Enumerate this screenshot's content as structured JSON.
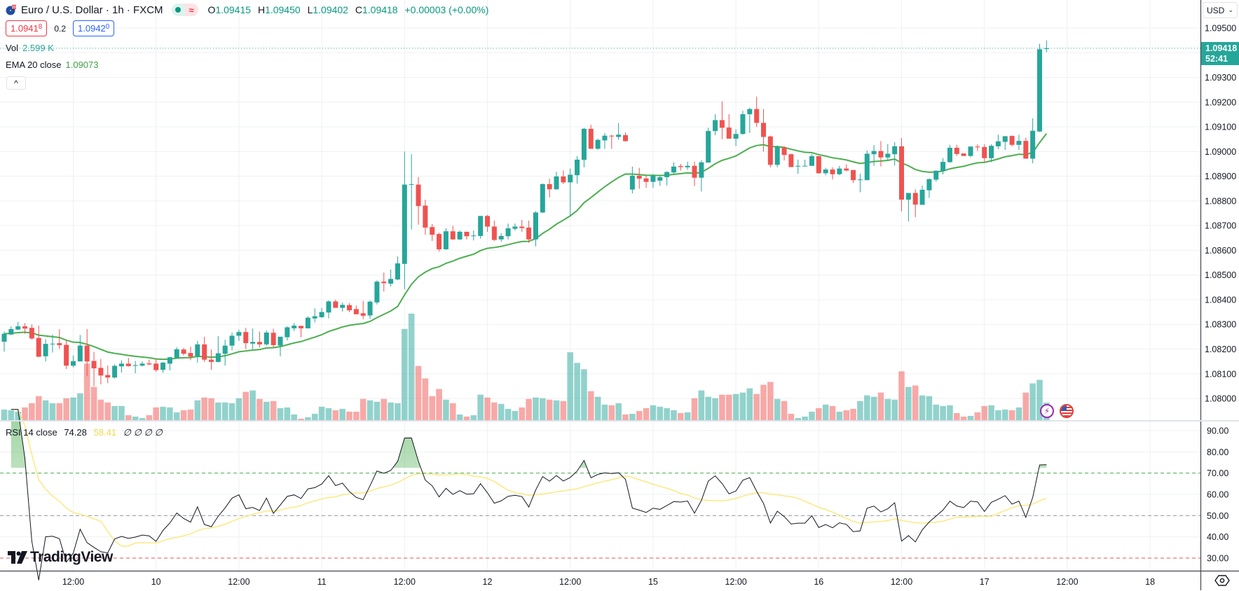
{
  "header": {
    "flag_icon": "eu-us-flag-icon",
    "symbol_title": "Euro / U.S. Dollar · 1h · FXCM",
    "market_status_icons": [
      "market-open-dot-icon",
      "approx-icon"
    ],
    "approx_glyph": "≈",
    "ohlc": {
      "o_label": "O",
      "o": "1.09415",
      "h_label": "H",
      "h": "1.09450",
      "l_label": "L",
      "l": "1.09402",
      "c_label": "C",
      "c": "1.09418",
      "change": "+0.00003 (+0.00%)"
    },
    "bid": {
      "main": "1.0941",
      "pip": "8"
    },
    "spread": "0.2",
    "ask": {
      "main": "1.0942",
      "pip": "0"
    }
  },
  "legends": {
    "vol": {
      "label": "Vol",
      "value": "2.599 K"
    },
    "ema": {
      "label": "EMA 20 close",
      "value": "1.09073"
    },
    "rsi": {
      "label": "RSI 14 close",
      "value": "74.28",
      "ma_value": "58.41",
      "extras": "∅ ∅ ∅ ∅"
    },
    "collapse_glyph": "^"
  },
  "price_axis": {
    "currency": "USD",
    "ticks": [
      "1.09500",
      "1.09300",
      "1.09200",
      "1.09100",
      "1.09000",
      "1.08900",
      "1.08800",
      "1.08700",
      "1.08600",
      "1.08500",
      "1.08400",
      "1.08300",
      "1.08200",
      "1.08100",
      "1.08000"
    ],
    "last_price": "1.09418",
    "countdown": "52:41"
  },
  "rsi_axis": {
    "ticks": [
      "90.00",
      "80.00",
      "70.00",
      "60.00",
      "50.00",
      "40.00",
      "30.00"
    ]
  },
  "time_axis": {
    "ticks": [
      {
        "label": "12:00",
        "bar_index": 10
      },
      {
        "label": "10",
        "bar_index": 22
      },
      {
        "label": "12:00",
        "bar_index": 34
      },
      {
        "label": "11",
        "bar_index": 46
      },
      {
        "label": "12:00",
        "bar_index": 58
      },
      {
        "label": "12",
        "bar_index": 70
      },
      {
        "label": "12:00",
        "bar_index": 82
      },
      {
        "label": "15",
        "bar_index": 94
      },
      {
        "label": "12:00",
        "bar_index": 106
      },
      {
        "label": "16",
        "bar_index": 118
      },
      {
        "label": "12:00",
        "bar_index": 130
      },
      {
        "label": "17",
        "bar_index": 142
      },
      {
        "label": "12:00",
        "bar_index": 154
      },
      {
        "label": "18",
        "bar_index": 166
      }
    ]
  },
  "branding": {
    "name": "TradingView"
  },
  "event_icons": [
    "lightning-icon",
    "us-flag-icon"
  ],
  "settings_icon": "gear-icon",
  "colors": {
    "up": "#26a69a",
    "down": "#ef5350",
    "vol_up": "rgba(38,166,154,0.5)",
    "vol_down": "rgba(239,83,80,0.5)",
    "ema": "#4caf50",
    "rsi": "#131722",
    "rsi_ma": "#fbe87a",
    "overbought_band": "#4caf50",
    "mid_band": "#9598a1",
    "oversold_band": "#ef5350",
    "grid": "#eef0f3"
  },
  "chart_data": {
    "type": "candlestick",
    "interval": "1h",
    "ylim": [
      1.0791,
      1.0961
    ],
    "rsi_ylim": [
      25,
      95
    ],
    "rsi_levels": [
      70,
      50,
      30
    ],
    "ema_period": 20,
    "rsi_period": 14,
    "rsi_ma_period": 14,
    "grid": true,
    "candle_fields": [
      "open",
      "high",
      "low",
      "close",
      "volume"
    ],
    "candles": [
      [
        1.0823,
        1.08271,
        1.0819,
        1.08262,
        1575
      ],
      [
        1.08259,
        1.08292,
        1.08256,
        1.08281,
        1470
      ],
      [
        1.08279,
        1.0831,
        1.08276,
        1.08292,
        1260
      ],
      [
        1.08292,
        1.08305,
        1.08262,
        1.08283,
        1890
      ],
      [
        1.08286,
        1.083,
        1.08238,
        1.08243,
        2520
      ],
      [
        1.08245,
        1.08295,
        1.08167,
        1.08169,
        3570
      ],
      [
        1.08171,
        1.0824,
        1.0815,
        1.08221,
        2940
      ],
      [
        1.0822,
        1.08259,
        1.08186,
        1.08222,
        2520
      ],
      [
        1.08224,
        1.08281,
        1.082,
        1.08216,
        2520
      ],
      [
        1.08217,
        1.08238,
        1.08119,
        1.08133,
        3255
      ],
      [
        1.08133,
        1.08174,
        1.08126,
        1.08151,
        3360
      ],
      [
        1.0815,
        1.08257,
        1.0815,
        1.08214,
        3990
      ],
      [
        1.08214,
        1.08281,
        1.0809,
        1.0815,
        8400
      ],
      [
        1.08152,
        1.08189,
        1.0805,
        1.08122,
        4935
      ],
      [
        1.08124,
        1.0816,
        1.08057,
        1.08093,
        3045
      ],
      [
        1.08095,
        1.08133,
        1.08062,
        1.08085,
        2625
      ],
      [
        1.08085,
        1.08138,
        1.08081,
        1.08132,
        2100
      ],
      [
        1.0813,
        1.08154,
        1.08105,
        1.08141,
        2100
      ],
      [
        1.08141,
        1.08164,
        1.08129,
        1.08131,
        735
      ],
      [
        1.08132,
        1.08152,
        1.08102,
        1.08135,
        525
      ],
      [
        1.08133,
        1.0815,
        1.08129,
        1.08141,
        315
      ],
      [
        1.08142,
        1.08157,
        1.08135,
        1.08138,
        735
      ],
      [
        1.08141,
        1.08162,
        1.08108,
        1.08115,
        1890
      ],
      [
        1.08116,
        1.08148,
        1.08104,
        1.08145,
        1995
      ],
      [
        1.08141,
        1.08167,
        1.08114,
        1.08167,
        1890
      ],
      [
        1.08165,
        1.08207,
        1.08162,
        1.08199,
        1155
      ],
      [
        1.08198,
        1.08205,
        1.08174,
        1.08181,
        1470
      ],
      [
        1.08184,
        1.0821,
        1.08155,
        1.08169,
        1575
      ],
      [
        1.08171,
        1.08233,
        1.08145,
        1.08219,
        2940
      ],
      [
        1.08219,
        1.0825,
        1.08148,
        1.08157,
        3360
      ],
      [
        1.08157,
        1.08198,
        1.08116,
        1.08148,
        3255
      ],
      [
        1.08148,
        1.08252,
        1.08146,
        1.08183,
        2625
      ],
      [
        1.08181,
        1.08238,
        1.08133,
        1.08214,
        2625
      ],
      [
        1.08214,
        1.08267,
        1.08195,
        1.08254,
        2520
      ],
      [
        1.08254,
        1.08279,
        1.08233,
        1.08269,
        3255
      ],
      [
        1.08269,
        1.08286,
        1.082,
        1.08224,
        4200
      ],
      [
        1.08222,
        1.08283,
        1.082,
        1.08229,
        4410
      ],
      [
        1.08229,
        1.08271,
        1.08207,
        1.08219,
        3150
      ],
      [
        1.08219,
        1.08276,
        1.08214,
        1.08267,
        2730
      ],
      [
        1.08266,
        1.08283,
        1.08207,
        1.08216,
        2835
      ],
      [
        1.08214,
        1.0825,
        1.08171,
        1.0825,
        1785
      ],
      [
        1.08248,
        1.08292,
        1.08235,
        1.08288,
        1890
      ],
      [
        1.08284,
        1.08305,
        1.08273,
        1.08295,
        840
      ],
      [
        1.08294,
        1.08294,
        1.08248,
        1.08284,
        210
      ],
      [
        1.08284,
        1.08333,
        1.08284,
        1.08327,
        420
      ],
      [
        1.08324,
        1.08365,
        1.08308,
        1.08333,
        945
      ],
      [
        1.08329,
        1.08367,
        1.08326,
        1.0835,
        1995
      ],
      [
        1.08348,
        1.08397,
        1.08324,
        1.08393,
        1785
      ],
      [
        1.08393,
        1.084,
        1.08367,
        1.08367,
        1470
      ],
      [
        1.08367,
        1.08388,
        1.08352,
        1.08379,
        1680
      ],
      [
        1.08378,
        1.08386,
        1.0835,
        1.08357,
        1260
      ],
      [
        1.08362,
        1.08376,
        1.08341,
        1.08341,
        1260
      ],
      [
        1.08345,
        1.08395,
        1.08321,
        1.08335,
        3150
      ],
      [
        1.08336,
        1.08397,
        1.08322,
        1.08392,
        2940
      ],
      [
        1.08389,
        1.08478,
        1.08381,
        1.08473,
        2730
      ],
      [
        1.08473,
        1.0851,
        1.08433,
        1.08467,
        3150
      ],
      [
        1.08465,
        1.08522,
        1.08453,
        1.08484,
        2625
      ],
      [
        1.08482,
        1.08575,
        1.08479,
        1.08547,
        2520
      ],
      [
        1.08545,
        1.09,
        1.08442,
        1.08866,
        13545
      ],
      [
        1.08866,
        1.08989,
        1.08684,
        1.08868,
        15820
      ],
      [
        1.08866,
        1.08897,
        1.08704,
        1.08779,
        8050
      ],
      [
        1.08781,
        1.08805,
        1.08663,
        1.08692,
        6195
      ],
      [
        1.08694,
        1.08706,
        1.08638,
        1.08663,
        3570
      ],
      [
        1.08666,
        1.08671,
        1.08595,
        1.08604,
        4620
      ],
      [
        1.08604,
        1.08689,
        1.08602,
        1.08677,
        3045
      ],
      [
        1.08677,
        1.08699,
        1.08642,
        1.08644,
        2520
      ],
      [
        1.08644,
        1.0868,
        1.08642,
        1.08675,
        840
      ],
      [
        1.08675,
        1.08675,
        1.08644,
        1.08657,
        525
      ],
      [
        1.08657,
        1.0868,
        1.0864,
        1.0866,
        735
      ],
      [
        1.08658,
        1.08739,
        1.08647,
        1.08739,
        3780
      ],
      [
        1.08739,
        1.08743,
        1.08675,
        1.08696,
        3360
      ],
      [
        1.08696,
        1.0872,
        1.08638,
        1.08642,
        2625
      ],
      [
        1.08644,
        1.0867,
        1.08635,
        1.08658,
        2415
      ],
      [
        1.08657,
        1.08708,
        1.08644,
        1.08689,
        1680
      ],
      [
        1.08687,
        1.08708,
        1.0868,
        1.08696,
        1365
      ],
      [
        1.08696,
        1.08723,
        1.08675,
        1.0869,
        1890
      ],
      [
        1.08692,
        1.0872,
        1.0863,
        1.08644,
        3150
      ],
      [
        1.08644,
        1.08759,
        1.08616,
        1.08753,
        3360
      ],
      [
        1.08753,
        1.08871,
        1.08751,
        1.08868,
        3255
      ],
      [
        1.08868,
        1.0889,
        1.08814,
        1.08847,
        3045
      ],
      [
        1.08847,
        1.08918,
        1.08845,
        1.08899,
        2940
      ],
      [
        1.08899,
        1.08923,
        1.08868,
        1.08875,
        2835
      ],
      [
        1.08875,
        1.08931,
        1.08736,
        1.08906,
        10080
      ],
      [
        1.08904,
        1.08981,
        1.0887,
        1.08967,
        8505
      ],
      [
        1.08966,
        1.09096,
        1.08936,
        1.09092,
        7560
      ],
      [
        1.09092,
        1.09108,
        1.09011,
        1.09011,
        4305
      ],
      [
        1.09011,
        1.09052,
        1.09007,
        1.09047,
        3465
      ],
      [
        1.09045,
        1.09075,
        1.09011,
        1.09064,
        2310
      ],
      [
        1.09064,
        1.09068,
        1.09011,
        1.09061,
        2205
      ],
      [
        1.09059,
        1.09115,
        1.09047,
        1.09068,
        2520
      ],
      [
        1.09066,
        1.09077,
        1.0904,
        1.09042,
        840
      ],
      [
        1.08846,
        1.08939,
        1.0883,
        1.08902,
        945
      ],
      [
        1.08902,
        1.08934,
        1.08849,
        1.0889,
        1365
      ],
      [
        1.08891,
        1.08902,
        1.08853,
        1.08877,
        1785
      ],
      [
        1.08877,
        1.08909,
        1.08853,
        1.08902,
        2205
      ],
      [
        1.08882,
        1.08904,
        1.08861,
        1.08896,
        1995
      ],
      [
        1.08896,
        1.0892,
        1.08863,
        1.08917,
        1785
      ],
      [
        1.08915,
        1.08956,
        1.08908,
        1.08939,
        1470
      ],
      [
        1.08941,
        1.0895,
        1.08923,
        1.08937,
        1050
      ],
      [
        1.08936,
        1.08959,
        1.08926,
        1.08942,
        1155
      ],
      [
        1.08942,
        1.08959,
        1.0886,
        1.08894,
        3255
      ],
      [
        1.08894,
        1.08964,
        1.08838,
        1.08956,
        4410
      ],
      [
        1.08955,
        1.09096,
        1.08955,
        1.09083,
        3465
      ],
      [
        1.09083,
        1.09151,
        1.09066,
        1.09127,
        3255
      ],
      [
        1.09127,
        1.09203,
        1.0905,
        1.09096,
        3780
      ],
      [
        1.09097,
        1.09151,
        1.09052,
        1.09052,
        3780
      ],
      [
        1.09052,
        1.0909,
        1.09022,
        1.09071,
        3885
      ],
      [
        1.09071,
        1.09165,
        1.09068,
        1.09151,
        4095
      ],
      [
        1.09151,
        1.09177,
        1.09075,
        1.09172,
        4725
      ],
      [
        1.09172,
        1.09222,
        1.09099,
        1.09116,
        3885
      ],
      [
        1.09116,
        1.09172,
        1.09,
        1.09059,
        5250
      ],
      [
        1.09061,
        1.09064,
        1.08936,
        1.08946,
        5670
      ],
      [
        1.08946,
        1.09024,
        1.08936,
        1.09019,
        3150
      ],
      [
        1.09017,
        1.09021,
        1.08964,
        1.08986,
        2835
      ],
      [
        1.08989,
        1.08991,
        1.08937,
        1.08937,
        945
      ],
      [
        1.08939,
        1.08967,
        1.0891,
        1.08942,
        315
      ],
      [
        1.0894,
        1.08967,
        1.0894,
        1.08942,
        525
      ],
      [
        1.08942,
        1.08989,
        1.08942,
        1.08981,
        1260
      ],
      [
        1.08981,
        1.08983,
        1.0891,
        1.08912,
        1785
      ],
      [
        1.08912,
        1.08934,
        1.08904,
        1.08927,
        2310
      ],
      [
        1.08927,
        1.08936,
        1.08887,
        1.08908,
        2100
      ],
      [
        1.08908,
        1.08942,
        1.08904,
        1.08931,
        1260
      ],
      [
        1.08931,
        1.08948,
        1.0892,
        1.08923,
        1470
      ],
      [
        1.08925,
        1.08925,
        1.08873,
        1.08884,
        1680
      ],
      [
        1.08884,
        1.0891,
        1.08835,
        1.08887,
        2835
      ],
      [
        1.08884,
        1.09005,
        1.08884,
        1.08991,
        3675
      ],
      [
        1.08989,
        1.09026,
        1.08942,
        1.09002,
        3465
      ],
      [
        1.09002,
        1.09042,
        1.08939,
        1.08976,
        4095
      ],
      [
        1.08976,
        1.0903,
        1.08962,
        1.08991,
        3150
      ],
      [
        1.08989,
        1.09038,
        1.08943,
        1.09021,
        3045
      ],
      [
        1.09021,
        1.09055,
        1.08758,
        1.08805,
        7245
      ],
      [
        1.08805,
        1.08832,
        1.08717,
        1.08832,
        4935
      ],
      [
        1.08832,
        1.08847,
        1.08734,
        1.08785,
        5145
      ],
      [
        1.08784,
        1.08862,
        1.08784,
        1.08845,
        3675
      ],
      [
        1.08843,
        1.08891,
        1.08812,
        1.08888,
        3570
      ],
      [
        1.08886,
        1.08924,
        1.08878,
        1.08922,
        2310
      ],
      [
        1.08921,
        1.08973,
        1.08907,
        1.08958,
        2100
      ],
      [
        1.08957,
        1.09027,
        1.08954,
        1.09015,
        2205
      ],
      [
        1.09015,
        1.09027,
        1.08982,
        1.0899,
        1050
      ],
      [
        1.08992,
        1.08992,
        1.08982,
        1.08982,
        525
      ],
      [
        1.08982,
        1.0902,
        1.08977,
        1.0902,
        630
      ],
      [
        1.0902,
        1.09029,
        1.09002,
        1.09017,
        1155
      ],
      [
        1.09018,
        1.09029,
        1.08957,
        1.08973,
        2100
      ],
      [
        1.08973,
        1.09029,
        1.08957,
        1.09023,
        2205
      ],
      [
        1.09021,
        1.09068,
        1.0901,
        1.09041,
        1470
      ],
      [
        1.09039,
        1.09062,
        1.09006,
        1.09062,
        1575
      ],
      [
        1.09063,
        1.09065,
        1.0902,
        1.09027,
        1470
      ],
      [
        1.09027,
        1.09068,
        1.09006,
        1.09043,
        1890
      ],
      [
        1.09043,
        1.09056,
        1.08971,
        1.08971,
        4095
      ],
      [
        1.08971,
        1.09134,
        1.08952,
        1.09084,
        5460
      ],
      [
        1.09081,
        1.09436,
        1.09079,
        1.09414,
        5985
      ],
      [
        1.09415,
        1.0945,
        1.09402,
        1.09418,
        2599
      ]
    ]
  }
}
